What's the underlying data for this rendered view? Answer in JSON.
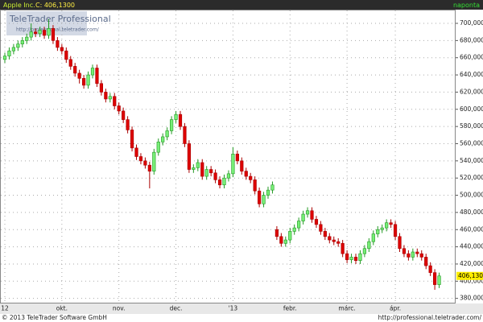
{
  "chart_data": {
    "type": "candlestick",
    "header": {
      "symbol": "Apple Inc.",
      "quote": "C: 406,1300",
      "interval": "naponta"
    },
    "watermark": {
      "title": "TeleTrader Professional",
      "url": "http://professional.teletrader.com/"
    },
    "footer": {
      "copyright": "© 2013 TeleTrader Software GmbH",
      "url": "http://professional.teletrader.com/"
    },
    "categories": [
      "12",
      null,
      null,
      null,
      null,
      null,
      null,
      null,
      null,
      null,
      null,
      null,
      null,
      "okt.",
      null,
      null,
      null,
      null,
      null,
      null,
      null,
      null,
      null,
      null,
      null,
      null,
      "nov.",
      null,
      null,
      null,
      null,
      null,
      null,
      null,
      null,
      null,
      null,
      null,
      null,
      "dec.",
      null,
      null,
      null,
      null,
      null,
      null,
      null,
      null,
      null,
      null,
      null,
      null,
      "'13",
      null,
      null,
      null,
      null,
      null,
      null,
      null,
      null,
      null,
      null,
      null,
      null,
      "febr.",
      null,
      null,
      null,
      null,
      null,
      null,
      null,
      null,
      null,
      null,
      null,
      null,
      "márc.",
      null,
      null,
      null,
      null,
      null,
      null,
      null,
      null,
      null,
      null,
      "ápr.",
      null,
      null,
      null,
      null,
      null,
      null,
      null,
      null,
      null,
      null
    ],
    "open": [
      658,
      662,
      668,
      672,
      676,
      680,
      684,
      690,
      688,
      692,
      686,
      694,
      680,
      672,
      668,
      658,
      650,
      642,
      636,
      628,
      640,
      648,
      630,
      620,
      612,
      615,
      604,
      598,
      588,
      576,
      555,
      545,
      540,
      535,
      528,
      550,
      562,
      568,
      575,
      588,
      594,
      580,
      560,
      530,
      532,
      538,
      522,
      530,
      526,
      518,
      512,
      520,
      525,
      548,
      540,
      528,
      522,
      518,
      505,
      490,
      500,
      506,
      460,
      452,
      444,
      448,
      458,
      462,
      470,
      478,
      482,
      472,
      466,
      458,
      452,
      448,
      446,
      444,
      432,
      425,
      428,
      424,
      432,
      438,
      446,
      455,
      460,
      462,
      468,
      466,
      452,
      438,
      432,
      428,
      434,
      432,
      428,
      418,
      410,
      396
    ],
    "high": [
      666,
      672,
      676,
      680,
      684,
      688,
      700,
      694,
      696,
      696,
      705,
      698,
      684,
      676,
      672,
      662,
      654,
      646,
      640,
      644,
      652,
      652,
      634,
      624,
      619,
      619,
      608,
      602,
      592,
      580,
      559,
      549,
      544,
      539,
      554,
      566,
      572,
      579,
      592,
      598,
      598,
      584,
      564,
      536,
      542,
      542,
      534,
      534,
      530,
      522,
      524,
      529,
      556,
      552,
      544,
      532,
      526,
      522,
      509,
      504,
      510,
      516,
      464,
      456,
      452,
      462,
      466,
      474,
      482,
      486,
      486,
      476,
      470,
      462,
      456,
      452,
      450,
      448,
      436,
      432,
      432,
      436,
      442,
      450,
      459,
      464,
      466,
      472,
      472,
      470,
      456,
      442,
      436,
      438,
      438,
      436,
      432,
      422,
      414,
      410
    ],
    "low": [
      654,
      658,
      664,
      668,
      672,
      676,
      680,
      684,
      684,
      682,
      682,
      676,
      668,
      664,
      654,
      646,
      638,
      630,
      624,
      624,
      636,
      626,
      616,
      608,
      608,
      600,
      594,
      584,
      572,
      551,
      541,
      536,
      531,
      508,
      524,
      546,
      558,
      564,
      571,
      584,
      576,
      556,
      526,
      526,
      528,
      518,
      518,
      522,
      514,
      508,
      508,
      516,
      521,
      536,
      524,
      518,
      514,
      501,
      486,
      486,
      496,
      502,
      448,
      440,
      440,
      444,
      454,
      458,
      466,
      474,
      468,
      462,
      454,
      448,
      444,
      442,
      440,
      428,
      421,
      421,
      420,
      420,
      428,
      434,
      442,
      451,
      456,
      458,
      462,
      448,
      434,
      428,
      424,
      424,
      428,
      424,
      414,
      406,
      390,
      392
    ],
    "close": [
      662,
      668,
      672,
      676,
      680,
      684,
      690,
      688,
      692,
      686,
      694,
      680,
      672,
      668,
      658,
      650,
      642,
      636,
      628,
      640,
      648,
      630,
      620,
      612,
      615,
      604,
      598,
      588,
      576,
      555,
      545,
      540,
      535,
      528,
      550,
      562,
      568,
      575,
      588,
      594,
      580,
      560,
      530,
      532,
      538,
      522,
      530,
      526,
      518,
      512,
      520,
      525,
      548,
      540,
      528,
      522,
      518,
      505,
      490,
      500,
      506,
      512,
      452,
      444,
      448,
      458,
      462,
      470,
      478,
      482,
      472,
      466,
      458,
      452,
      448,
      446,
      444,
      432,
      425,
      428,
      424,
      432,
      438,
      446,
      455,
      460,
      462,
      468,
      466,
      452,
      438,
      432,
      428,
      434,
      432,
      428,
      418,
      410,
      396,
      406.13
    ],
    "up_color": "#77ee77",
    "down_color": "#dd0000",
    "last_label": {
      "value": 406.13,
      "label": "406,1300"
    },
    "ylim": [
      375,
      715
    ],
    "yticks": [
      {
        "value": 380,
        "label": "380,0000"
      },
      {
        "value": 400,
        "label": "400,0000"
      },
      {
        "value": 420,
        "label": "420,0000"
      },
      {
        "value": 440,
        "label": "440,0000"
      },
      {
        "value": 460,
        "label": "460,0000"
      },
      {
        "value": 480,
        "label": "480,0000"
      },
      {
        "value": 500,
        "label": "500,0000"
      },
      {
        "value": 520,
        "label": "520,0000"
      },
      {
        "value": 540,
        "label": "540,0000"
      },
      {
        "value": 560,
        "label": "560,0000"
      },
      {
        "value": 580,
        "label": "580,0000"
      },
      {
        "value": 600,
        "label": "600,0000"
      },
      {
        "value": 620,
        "label": "620,0000"
      },
      {
        "value": 640,
        "label": "640,0000"
      },
      {
        "value": 660,
        "label": "660,0000"
      },
      {
        "value": 680,
        "label": "680,0000"
      },
      {
        "value": 700,
        "label": "700,0000"
      }
    ],
    "grid": true
  }
}
